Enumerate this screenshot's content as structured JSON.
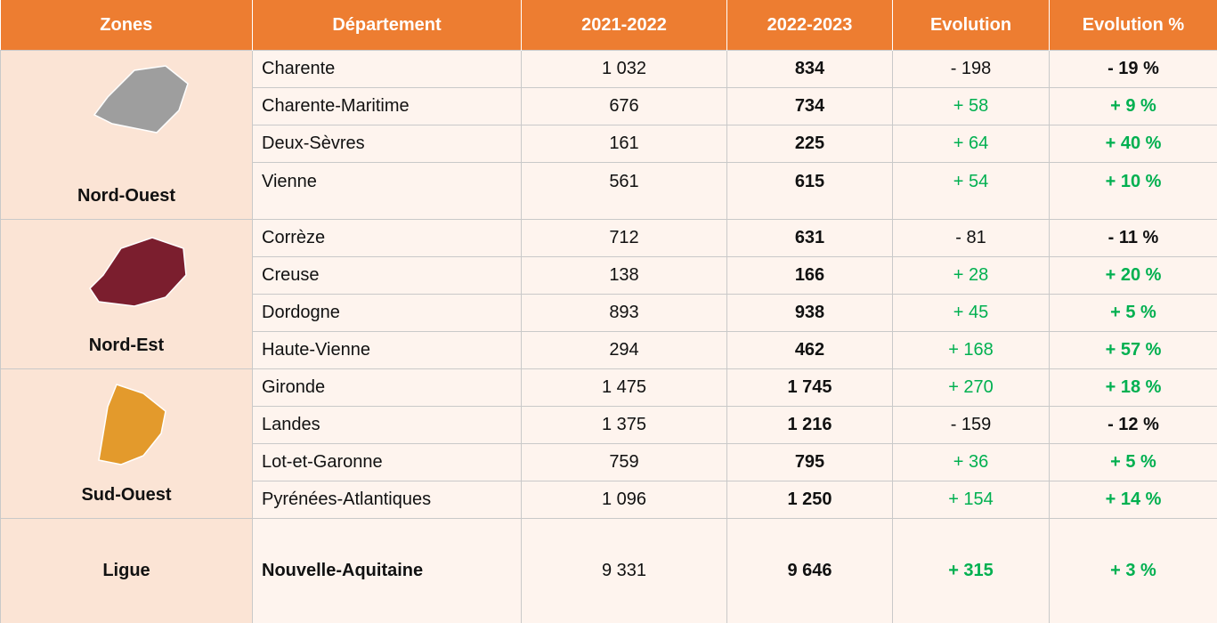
{
  "table": {
    "header": [
      "Zones",
      "Département",
      "2021-2022",
      "2022-2023",
      "Evolution",
      "Evolution %"
    ],
    "groups": [
      {
        "zone": "Nord-Ouest",
        "rows": [
          [
            "Charente",
            "1 032",
            "834",
            "- 198",
            "- 19 %"
          ],
          [
            "Charente-Maritime",
            "676",
            "734",
            "+ 58",
            "+ 9 %"
          ],
          [
            "Deux-Sèvres",
            "161",
            "225",
            "+ 64",
            "+ 40 %"
          ],
          [
            "Vienne",
            "561",
            "615",
            "+ 54",
            "+ 10 %"
          ]
        ]
      },
      {
        "zone": "Nord-Est",
        "rows": [
          [
            "Corrèze",
            "712",
            "631",
            "- 81",
            "- 11 %"
          ],
          [
            "Creuse",
            "138",
            "166",
            "+ 28",
            "+ 20 %"
          ],
          [
            "Dordogne",
            "893",
            "938",
            "+ 45",
            "+ 5 %"
          ],
          [
            "Haute-Vienne",
            "294",
            "462",
            "+ 168",
            "+ 57 %"
          ]
        ]
      },
      {
        "zone": "Sud-Ouest",
        "rows": [
          [
            "Gironde",
            "1 475",
            "1 745",
            "+ 270",
            "+ 18 %"
          ],
          [
            "Landes",
            "1 375",
            "1 216",
            "- 159",
            "- 12 %"
          ],
          [
            "Lot-et-Garonne",
            "759",
            "795",
            "+ 36",
            "+ 5 %"
          ],
          [
            "Pyrénées-Atlantiques",
            "1 096",
            "1 250",
            "+ 154",
            "+ 14 %"
          ]
        ]
      },
      {
        "zone": "Ligue",
        "rows": [
          [
            "Nouvelle-Aquitaine",
            "9 331",
            "9 646",
            "+ 315",
            "+ 3 %"
          ]
        ]
      }
    ]
  }
}
